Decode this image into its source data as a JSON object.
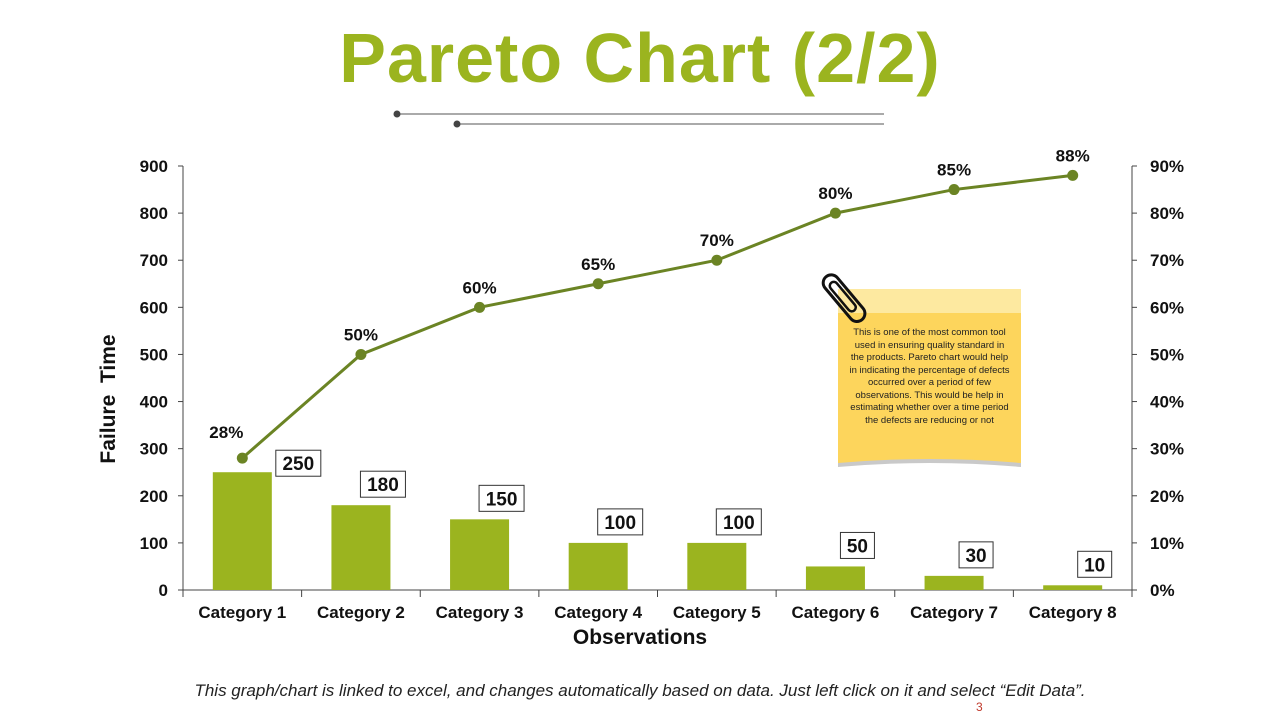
{
  "title": "Pareto Chart (2/2)",
  "footer": "This graph/chart is linked to excel, and changes automatically based on data. Just left click on it and select “Edit Data”.",
  "page_number": "3",
  "note": "This is one of the most common tool used in ensuring quality standard in the products. Pareto chart would help in indicating the percentage of defects occurred over a period of few observations. This would be help in estimating whether over a time period the defects are reducing or not",
  "colors": {
    "accent": "#9bb41f",
    "bar": "#9bb41f",
    "line": "#6b8424"
  },
  "chart_data": {
    "type": "bar",
    "categories": [
      "Category 1",
      "Category 2",
      "Category 3",
      "Category 4",
      "Category 5",
      "Category 6",
      "Category 7",
      "Category 8"
    ],
    "series": [
      {
        "name": "",
        "type": "bar",
        "axis": "left",
        "values": [
          250,
          180,
          150,
          100,
          100,
          50,
          30,
          10
        ],
        "labels": [
          "250",
          "180",
          "150",
          "100",
          "100",
          "50",
          "30",
          "10"
        ]
      },
      {
        "name": "",
        "type": "line",
        "axis": "right",
        "values": [
          28,
          50,
          60,
          65,
          70,
          80,
          85,
          88
        ],
        "labels": [
          "28%",
          "50%",
          "60%",
          "65%",
          "70%",
          "80%",
          "85%",
          "88%"
        ]
      }
    ],
    "xlabel": "Observations",
    "ylabel": "Failure  Time",
    "ylim": [
      0,
      900
    ],
    "y2lim": [
      0,
      90
    ],
    "yticks": [
      "0",
      "100",
      "200",
      "300",
      "400",
      "500",
      "600",
      "700",
      "800",
      "900"
    ],
    "y2ticks": [
      "0%",
      "10%",
      "20%",
      "30%",
      "40%",
      "50%",
      "60%",
      "70%",
      "80%",
      "90%"
    ],
    "grid": false,
    "legend": "none"
  }
}
